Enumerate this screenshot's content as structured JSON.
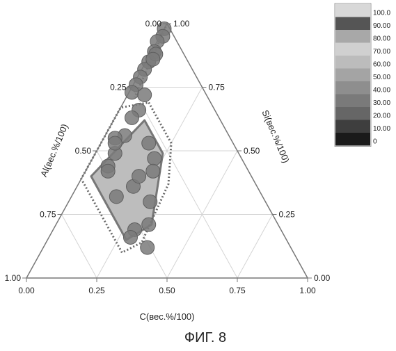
{
  "chart_data": {
    "type": "ternary",
    "title": "",
    "axes": {
      "a": {
        "label": "Al(вес.%/100)",
        "ticks": [
          "0.00",
          "0.25",
          "0.50",
          "0.75",
          "1.00"
        ]
      },
      "b": {
        "label": "Si(вес.%/100)",
        "ticks": [
          "1.00",
          "0.75",
          "0.50",
          "0.25",
          "0.00"
        ]
      },
      "c": {
        "label": "C(вес.%/100)",
        "ticks": [
          "0.00",
          "0.25",
          "0.50",
          "0.75",
          "1.00"
        ]
      }
    },
    "grid": true,
    "legend": {
      "placement": "top-right",
      "labels": [
        "100.0",
        "90.00",
        "80.00",
        "70.00",
        "60.00",
        "50.00",
        "40.00",
        "30.00",
        "20.00",
        "10.00",
        "0"
      ],
      "colors": [
        "#d8d8d8",
        "#555555",
        "#a8a8a8",
        "#d0d0d0",
        "#bcbcbc",
        "#a4a4a4",
        "#8e8e8e",
        "#7a7a7a",
        "#666666",
        "#3e3e3e",
        "#1a1a1a"
      ]
    },
    "points": [
      {
        "al": 0.02,
        "si": 0.98,
        "c": 0.0
      },
      {
        "al": 0.04,
        "si": 0.95,
        "c": 0.01
      },
      {
        "al": 0.07,
        "si": 0.93,
        "c": 0.0
      },
      {
        "al": 0.1,
        "si": 0.89,
        "c": 0.01
      },
      {
        "al": 0.14,
        "si": 0.85,
        "c": 0.01
      },
      {
        "al": 0.17,
        "si": 0.82,
        "c": 0.01
      },
      {
        "al": 0.2,
        "si": 0.79,
        "c": 0.01
      },
      {
        "al": 0.23,
        "si": 0.76,
        "c": 0.01
      },
      {
        "al": 0.26,
        "si": 0.73,
        "c": 0.01
      },
      {
        "al": 0.1,
        "si": 0.88,
        "c": 0.02
      },
      {
        "al": 0.12,
        "si": 0.86,
        "c": 0.02
      },
      {
        "al": 0.22,
        "si": 0.72,
        "c": 0.06
      },
      {
        "al": 0.27,
        "si": 0.66,
        "c": 0.07
      },
      {
        "al": 0.31,
        "si": 0.63,
        "c": 0.06
      },
      {
        "al": 0.37,
        "si": 0.56,
        "c": 0.07
      },
      {
        "al": 0.41,
        "si": 0.55,
        "c": 0.04
      },
      {
        "al": 0.44,
        "si": 0.49,
        "c": 0.07
      },
      {
        "al": 0.49,
        "si": 0.44,
        "c": 0.07
      },
      {
        "al": 0.5,
        "si": 0.42,
        "c": 0.08
      },
      {
        "al": 0.3,
        "si": 0.53,
        "c": 0.17
      },
      {
        "al": 0.31,
        "si": 0.47,
        "c": 0.22
      },
      {
        "al": 0.44,
        "si": 0.36,
        "c": 0.2
      },
      {
        "al": 0.34,
        "si": 0.42,
        "c": 0.24
      },
      {
        "al": 0.41,
        "si": 0.3,
        "c": 0.29
      },
      {
        "al": 0.52,
        "si": 0.32,
        "c": 0.16
      },
      {
        "al": 0.52,
        "si": 0.19,
        "c": 0.29
      },
      {
        "al": 0.4,
        "si": 0.4,
        "c": 0.2
      },
      {
        "al": 0.46,
        "si": 0.21,
        "c": 0.33
      },
      {
        "al": 0.51,
        "si": 0.12,
        "c": 0.37
      },
      {
        "al": 0.55,
        "si": 0.16,
        "c": 0.29
      },
      {
        "al": 0.42,
        "si": 0.53,
        "c": 0.05
      }
    ],
    "solid_region": [
      {
        "al": 0.27,
        "si": 0.62,
        "c": 0.11
      },
      {
        "al": 0.27,
        "si": 0.49,
        "c": 0.24
      },
      {
        "al": 0.45,
        "si": 0.21,
        "c": 0.34
      },
      {
        "al": 0.57,
        "si": 0.15,
        "c": 0.28
      },
      {
        "al": 0.57,
        "si": 0.4,
        "c": 0.03
      }
    ],
    "dotted_region": [
      {
        "al": 0.22,
        "si": 0.69,
        "c": 0.09
      },
      {
        "al": 0.22,
        "si": 0.53,
        "c": 0.25
      },
      {
        "al": 0.31,
        "si": 0.37,
        "c": 0.32
      },
      {
        "al": 0.52,
        "si": 0.14,
        "c": 0.34
      },
      {
        "al": 0.61,
        "si": 0.1,
        "c": 0.29
      },
      {
        "al": 0.61,
        "si": 0.39,
        "c": 0.0
      },
      {
        "al": 0.33,
        "si": 0.67,
        "c": 0.0
      }
    ],
    "dotted_lines": [
      [
        {
          "al": 0.0,
          "si": 1.0,
          "c": 0.0
        },
        {
          "al": 0.26,
          "si": 0.71,
          "c": 0.03
        }
      ]
    ]
  },
  "caption": "ФИГ. 8",
  "colors": {
    "marker": "#7a7a7a",
    "marker_stroke": "#5e5e5e",
    "region_fill": "#bdbdbd",
    "region_stroke": "#777777",
    "dotted_stroke": "#6a6a6a",
    "axis": "#777777",
    "grid": "#d4d4d4"
  }
}
